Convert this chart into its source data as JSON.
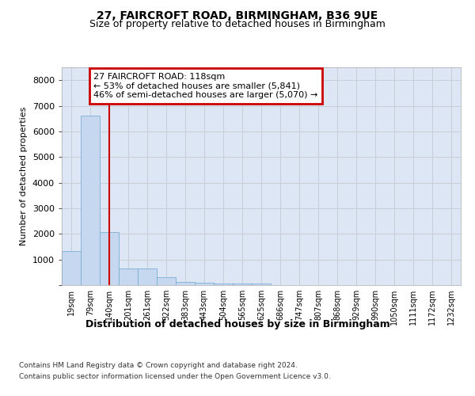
{
  "title1": "27, FAIRCROFT ROAD, BIRMINGHAM, B36 9UE",
  "title2": "Size of property relative to detached houses in Birmingham",
  "xlabel": "Distribution of detached houses by size in Birmingham",
  "ylabel": "Number of detached properties",
  "bin_labels": [
    "19sqm",
    "79sqm",
    "140sqm",
    "201sqm",
    "261sqm",
    "322sqm",
    "383sqm",
    "443sqm",
    "504sqm",
    "565sqm",
    "625sqm",
    "686sqm",
    "747sqm",
    "807sqm",
    "868sqm",
    "929sqm",
    "990sqm",
    "1050sqm",
    "1111sqm",
    "1172sqm",
    "1232sqm"
  ],
  "bar_values": [
    1320,
    6600,
    2080,
    650,
    640,
    295,
    135,
    100,
    50,
    50,
    70,
    0,
    0,
    0,
    0,
    0,
    0,
    0,
    0,
    0,
    0
  ],
  "bar_color": "#c5d8f0",
  "bar_edge_color": "#7aadd4",
  "grid_color": "#c8cdd6",
  "bg_color": "#dce6f5",
  "red_line_x": 2,
  "annotation_text": "27 FAIRCROFT ROAD: 118sqm\n← 53% of detached houses are smaller (5,841)\n46% of semi-detached houses are larger (5,070) →",
  "annotation_box_color": "#ffffff",
  "annotation_border_color": "#cc0000",
  "ylim": [
    0,
    8500
  ],
  "yticks": [
    0,
    1000,
    2000,
    3000,
    4000,
    5000,
    6000,
    7000,
    8000
  ],
  "footer1": "Contains HM Land Registry data © Crown copyright and database right 2024.",
  "footer2": "Contains public sector information licensed under the Open Government Licence v3.0."
}
